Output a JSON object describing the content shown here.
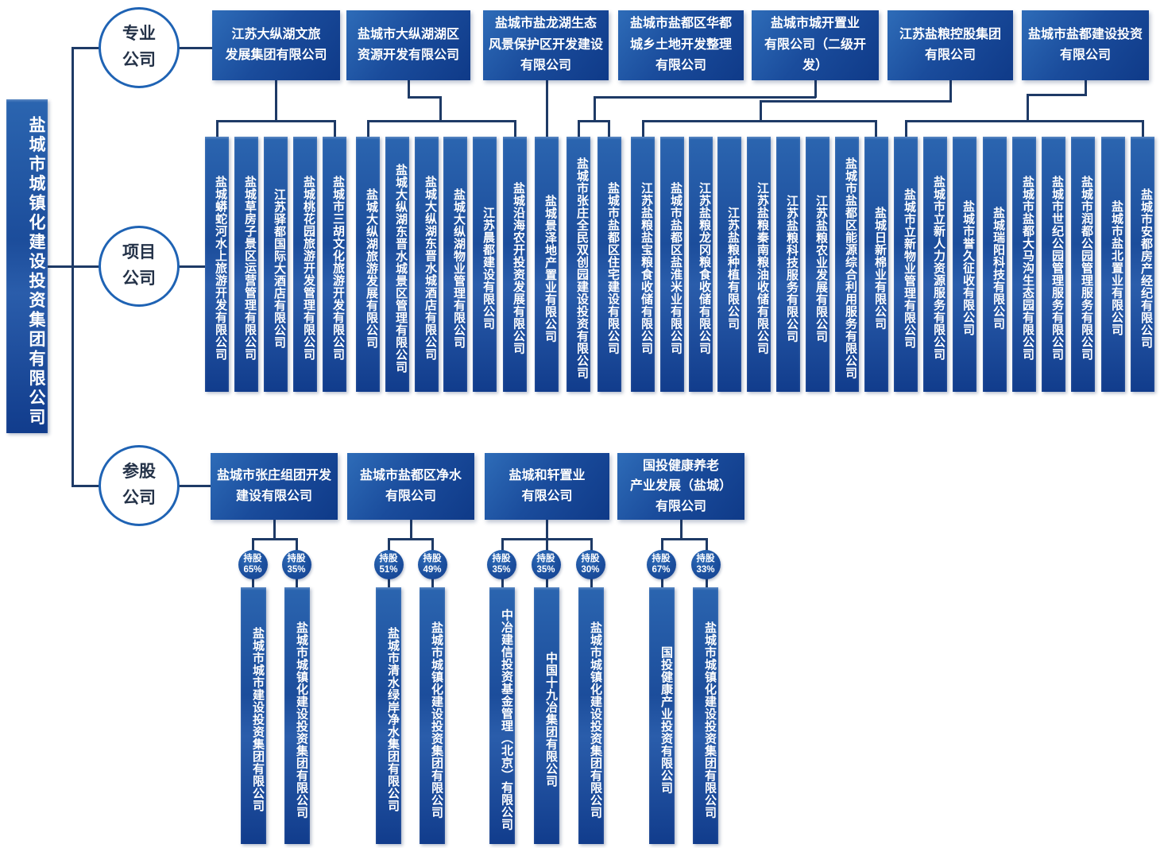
{
  "root_company": "盐城市城镇化建设投资集团有限公司",
  "branch_labels": [
    "专业\n公司",
    "项目\n公司",
    "参股\n公司"
  ],
  "share_label": "持股",
  "colors": {
    "box_blue_light": "#2e6cb8",
    "box_blue_dark": "#0f3a88",
    "line_navy": "#1e3a66",
    "circle_border_blue": "#1f63b4"
  },
  "professional_companies": [
    "江苏大纵湖文旅\n发展集团有限公司",
    "盐城市大纵湖湖区\n资源开发有限公司",
    "盐城市盐龙湖生态\n风景保护区开发建设\n有限公司",
    "盐城市盐都区华都\n城乡土地开发整理\n有限公司",
    "盐城市城开置业\n有限公司（二级开发）",
    "江苏盐粮控股集团\n有限公司",
    "盐城市盐都建设投资\n有限公司"
  ],
  "project_groups": [
    {
      "parent_index": 0,
      "companies": [
        "盐城蟒蛇河水上旅游开发有限公司",
        "盐城草房子景区运营管理有限公司",
        "江苏驿都国际大酒店有限公司",
        "盐城桃花园旅游开发管理有限公司",
        "盐城市三胡文化旅游开发有限公司"
      ]
    },
    {
      "parent_index": 1,
      "companies": [
        "盐城大纵湖旅游发展有限公司",
        "盐城大纵湖东晋水城景区管理有限公司",
        "盐城大纵湖东晋水城酒店有限公司",
        "盐城大纵湖物业管理有限公司",
        "江苏晨都建设有限公司",
        "盐城沿海农开投资发展有限公司"
      ]
    },
    {
      "parent_index": 2,
      "companies": [
        "盐城景泽地产置业有限公司"
      ]
    },
    {
      "parent_index": 4,
      "companies": [
        "盐城市张庄全民双创园建设投资有限公司",
        "盐城市盐都区住宅建设有限公司"
      ]
    },
    {
      "parent_index": 5,
      "companies": [
        "江苏盐粮盐宝粮食收储有限公司",
        "盐城市盐都区盐淮米业有限公司",
        "江苏盐粮龙冈粮食收储有限公司",
        "江苏盐粮种植有限公司",
        "江苏盐粮秦南粮油收储有限公司",
        "江苏盐粮科技服务有限公司",
        "江苏盐粮农业发展有限公司",
        "盐城市盐都区能源综合利用服务有限公司",
        "盐城日新棉业有限公司"
      ]
    },
    {
      "parent_index": 6,
      "companies": [
        "盐城市立新物业管理有限公司",
        "盐城市立新人力资源服务有限公司",
        "盐城市誉久征收有限公司",
        "盐城瑞阳科技有限公司",
        "盐城市盐都大马沟生态园有限公司",
        "盐城市世纪公园管理服务有限公司",
        "盐城市润都公园管理服务有限公司",
        "盐城市盐北置业有限公司",
        "盐城市安都房产经纪有限公司"
      ]
    }
  ],
  "holding_groups": [
    {
      "company": "盐城市张庄组团开发\n建设有限公司",
      "stakes": [
        {
          "share": "65%",
          "holder": "盐城市城市建设投资集团有限公司"
        },
        {
          "share": "35%",
          "holder": "盐城市城镇化建设投资集团有限公司"
        }
      ]
    },
    {
      "company": "盐城市盐都区净水\n有限公司",
      "stakes": [
        {
          "share": "51%",
          "holder": "盐城市清水绿岸净水集团有限公司"
        },
        {
          "share": "49%",
          "holder": "盐城市城镇化建设投资集团有限公司"
        }
      ]
    },
    {
      "company": "盐城和轩置业\n有限公司",
      "stakes": [
        {
          "share": "35%",
          "holder": "中冶建信投资基金管理（北京）有限公司"
        },
        {
          "share": "35%",
          "holder": "中国十九冶集团有限公司"
        },
        {
          "share": "30%",
          "holder": "盐城市城镇化建设投资集团有限公司"
        }
      ]
    },
    {
      "company": "国投健康养老\n产业发展（盐城）\n有限公司",
      "stakes": [
        {
          "share": "67%",
          "holder": "国投健康产业投资有限公司"
        },
        {
          "share": "33%",
          "holder": "盐城市城镇化建设投资集团有限公司"
        }
      ]
    }
  ]
}
